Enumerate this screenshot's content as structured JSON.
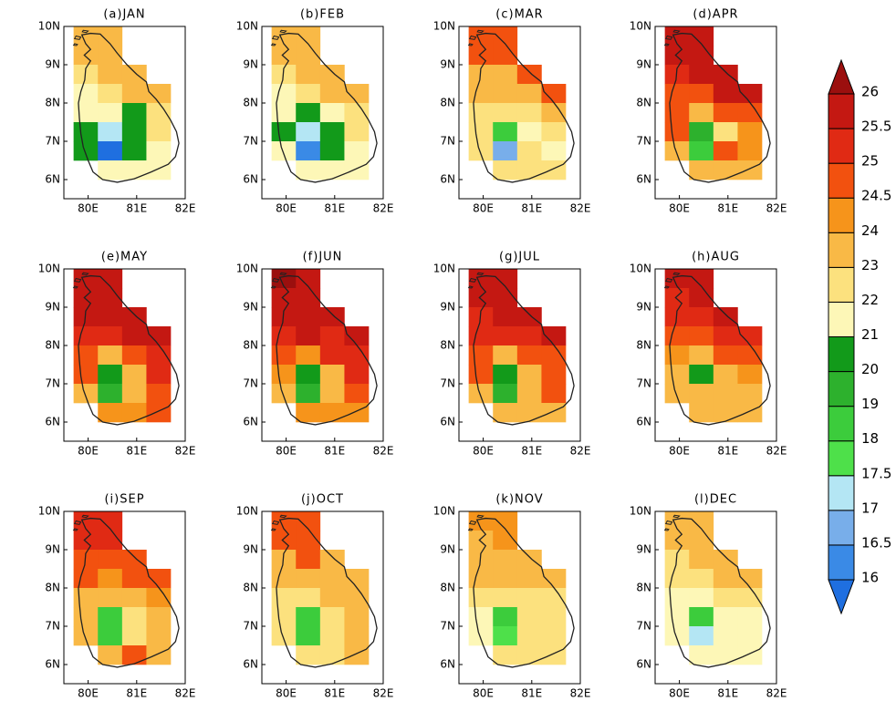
{
  "chart_data": {
    "type": "map",
    "xlim": [
      79.5,
      82
    ],
    "ylim": [
      5.5,
      10
    ],
    "xticks": [
      {
        "value": 80,
        "label": "80E"
      },
      {
        "value": 81,
        "label": "81E"
      },
      {
        "value": 82,
        "label": "82E"
      }
    ],
    "yticks": [
      {
        "value": 6,
        "label": "6N"
      },
      {
        "value": 7,
        "label": "7N"
      },
      {
        "value": 8,
        "label": "8N"
      },
      {
        "value": 9,
        "label": "9N"
      },
      {
        "value": 10,
        "label": "10N"
      }
    ],
    "lon_edges": [
      79.7,
      80.2,
      80.7,
      81.2,
      81.7
    ],
    "lat_edges": [
      10,
      9.5,
      9,
      8.5,
      8,
      7.5,
      7,
      6.5,
      6
    ],
    "colorbar": {
      "levels": [
        16,
        16.5,
        17,
        17.5,
        18,
        19,
        20,
        21,
        22,
        23,
        24,
        24.5,
        25,
        25.5,
        26
      ],
      "colors": [
        "#1f6fe0",
        "#3a8ae6",
        "#78aeea",
        "#b4e6f4",
        "#4ee04a",
        "#3ccc3c",
        "#2db12d",
        "#129a1a",
        "#fdf7b7",
        "#fce17e",
        "#f9b946",
        "#f6941b",
        "#f2510f",
        "#e02a14",
        "#c41812",
        "#9b0f0e"
      ]
    },
    "panels": [
      {
        "title": "(a)JAN",
        "values": [
          [
            23.5,
            23.5,
            null,
            null
          ],
          [
            23.5,
            23.5,
            null,
            null
          ],
          [
            22.5,
            23.5,
            23.5,
            null
          ],
          [
            21.5,
            22.5,
            23.5,
            23.5
          ],
          [
            21.5,
            21.5,
            20.5,
            22.5
          ],
          [
            20.5,
            17.2,
            20.5,
            22.5
          ],
          [
            20.5,
            15.8,
            20.5,
            21.5
          ],
          [
            null,
            21.5,
            21.5,
            21.5
          ]
        ]
      },
      {
        "title": "(b)FEB",
        "values": [
          [
            23.5,
            23.5,
            null,
            null
          ],
          [
            23.5,
            23.5,
            null,
            null
          ],
          [
            22.5,
            23.5,
            23.5,
            null
          ],
          [
            21.5,
            22.5,
            23.5,
            23.5
          ],
          [
            21.5,
            20.5,
            21.5,
            22.5
          ],
          [
            20.5,
            17.2,
            20.5,
            22.5
          ],
          [
            21.5,
            16.2,
            20.5,
            21.5
          ],
          [
            null,
            21.5,
            21.5,
            21.5
          ]
        ]
      },
      {
        "title": "(c)MAR",
        "values": [
          [
            24.8,
            24.8,
            null,
            null
          ],
          [
            24.8,
            24.8,
            null,
            null
          ],
          [
            23.5,
            23.5,
            24.8,
            null
          ],
          [
            23.5,
            23.5,
            23.5,
            24.8
          ],
          [
            22.5,
            22.5,
            22.5,
            23.5
          ],
          [
            22.5,
            18.5,
            21.5,
            22.5
          ],
          [
            22.5,
            16.8,
            22.5,
            21.5
          ],
          [
            null,
            22.5,
            22.5,
            22.5
          ]
        ]
      },
      {
        "title": "(d)APR",
        "values": [
          [
            25.7,
            25.7,
            null,
            null
          ],
          [
            25.7,
            25.7,
            null,
            null
          ],
          [
            25.2,
            25.7,
            25.7,
            null
          ],
          [
            24.8,
            24.8,
            25.7,
            25.7
          ],
          [
            24.8,
            23.5,
            24.8,
            24.8
          ],
          [
            24.8,
            19.5,
            22.5,
            24.2
          ],
          [
            23.5,
            18.5,
            24.8,
            24.2
          ],
          [
            null,
            23.5,
            23.5,
            23.5
          ]
        ]
      },
      {
        "title": "(e)MAY",
        "values": [
          [
            25.7,
            25.7,
            null,
            null
          ],
          [
            25.7,
            25.7,
            null,
            null
          ],
          [
            25.7,
            25.7,
            25.7,
            null
          ],
          [
            25.2,
            25.2,
            25.7,
            25.7
          ],
          [
            24.8,
            23.5,
            24.8,
            25.2
          ],
          [
            24.8,
            20.5,
            23.5,
            25.2
          ],
          [
            23.5,
            19.5,
            23.5,
            24.8
          ],
          [
            null,
            24.2,
            24.2,
            24.8
          ]
        ]
      },
      {
        "title": "(f)JUN",
        "values": [
          [
            26.2,
            25.7,
            null,
            null
          ],
          [
            25.7,
            25.7,
            null,
            null
          ],
          [
            25.7,
            25.7,
            25.7,
            null
          ],
          [
            25.2,
            25.7,
            25.2,
            25.7
          ],
          [
            24.8,
            24.2,
            25.2,
            25.2
          ],
          [
            24.2,
            20.5,
            23.5,
            25.2
          ],
          [
            23.5,
            19.5,
            23.5,
            24.8
          ],
          [
            null,
            24.2,
            24.2,
            24.2
          ]
        ]
      },
      {
        "title": "(g)JUL",
        "values": [
          [
            25.7,
            25.7,
            null,
            null
          ],
          [
            25.7,
            25.7,
            null,
            null
          ],
          [
            25.2,
            25.7,
            25.7,
            null
          ],
          [
            25.2,
            25.2,
            25.2,
            25.7
          ],
          [
            24.8,
            23.5,
            24.8,
            24.8
          ],
          [
            24.8,
            20.5,
            23.5,
            24.8
          ],
          [
            23.5,
            19.5,
            23.5,
            24.8
          ],
          [
            null,
            23.5,
            23.5,
            23.5
          ]
        ]
      },
      {
        "title": "(h)AUG",
        "values": [
          [
            25.7,
            25.7,
            null,
            null
          ],
          [
            25.2,
            25.7,
            null,
            null
          ],
          [
            25.2,
            25.2,
            25.7,
            null
          ],
          [
            24.8,
            24.8,
            25.2,
            25.2
          ],
          [
            24.2,
            23.5,
            24.8,
            24.8
          ],
          [
            23.5,
            20.5,
            23.5,
            24.2
          ],
          [
            23.5,
            23.5,
            23.5,
            23.5
          ],
          [
            null,
            23.5,
            23.5,
            23.5
          ]
        ]
      },
      {
        "title": "(i)SEP",
        "values": [
          [
            25.2,
            25.2,
            null,
            null
          ],
          [
            25.2,
            25.2,
            null,
            null
          ],
          [
            24.8,
            24.8,
            24.8,
            null
          ],
          [
            24.8,
            24.2,
            24.8,
            24.8
          ],
          [
            23.5,
            23.5,
            23.5,
            24.2
          ],
          [
            23.5,
            18.5,
            22.5,
            23.5
          ],
          [
            23.5,
            18.2,
            22.5,
            23.5
          ],
          [
            null,
            23.5,
            24.8,
            23.5
          ]
        ]
      },
      {
        "title": "(j)OCT",
        "values": [
          [
            24.8,
            24.8,
            null,
            null
          ],
          [
            24.8,
            24.8,
            null,
            null
          ],
          [
            23.5,
            24.8,
            23.5,
            null
          ],
          [
            23.5,
            23.5,
            23.5,
            23.5
          ],
          [
            22.5,
            22.5,
            23.5,
            23.5
          ],
          [
            22.5,
            18.5,
            22.5,
            23.5
          ],
          [
            22.5,
            18.2,
            22.5,
            23.5
          ],
          [
            null,
            22.5,
            22.5,
            23.5
          ]
        ]
      },
      {
        "title": "(k)NOV",
        "values": [
          [
            24.2,
            24.2,
            null,
            null
          ],
          [
            23.5,
            24.2,
            null,
            null
          ],
          [
            23.5,
            23.5,
            23.5,
            null
          ],
          [
            23.5,
            23.5,
            23.5,
            23.5
          ],
          [
            22.5,
            22.5,
            22.5,
            22.5
          ],
          [
            21.5,
            18.5,
            22.5,
            22.5
          ],
          [
            21.5,
            17.8,
            22.5,
            22.5
          ],
          [
            null,
            22.5,
            22.5,
            22.5
          ]
        ]
      },
      {
        "title": "(l)DEC",
        "values": [
          [
            23.5,
            23.5,
            null,
            null
          ],
          [
            23.5,
            23.5,
            null,
            null
          ],
          [
            22.5,
            23.5,
            23.5,
            null
          ],
          [
            22.5,
            22.5,
            23.5,
            23.5
          ],
          [
            21.5,
            21.5,
            22.5,
            22.5
          ],
          [
            21.5,
            18.5,
            21.5,
            21.5
          ],
          [
            21.5,
            17.2,
            21.5,
            21.5
          ],
          [
            null,
            21.5,
            21.5,
            21.5
          ]
        ]
      }
    ]
  }
}
